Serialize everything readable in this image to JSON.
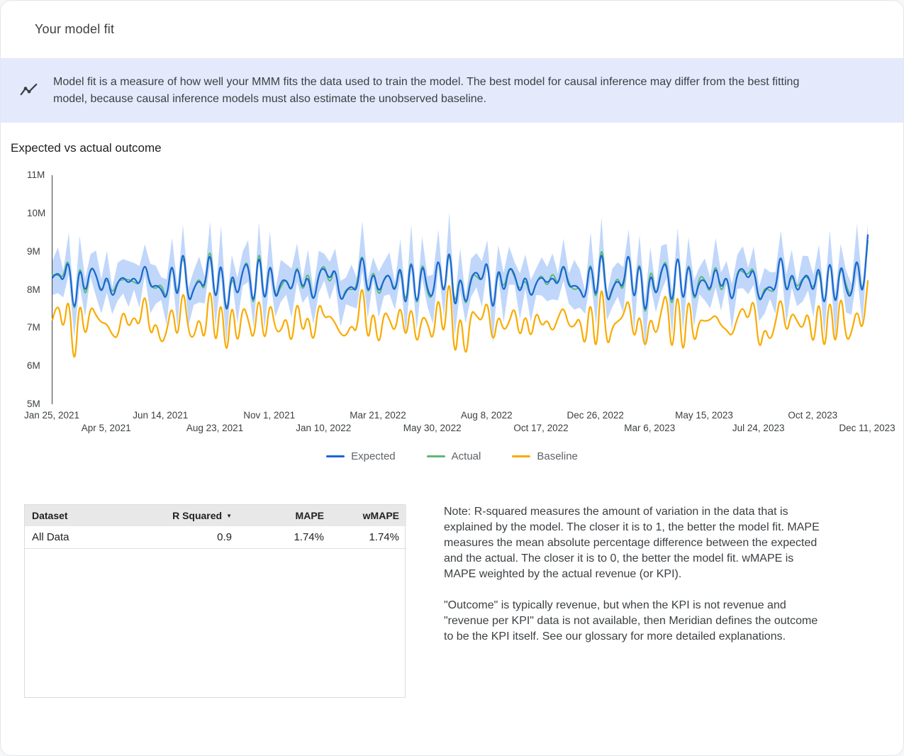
{
  "header": {
    "title": "Your model fit"
  },
  "banner": {
    "icon": "trend-line-icon",
    "text": "Model fit is a measure of how well your MMM fits the data used to train the model. The best model for causal inference may differ from the best fitting model, because causal inference models must also estimate the unobserved baseline."
  },
  "section": {
    "title": "Expected vs actual outcome"
  },
  "chart_data": {
    "type": "line",
    "title": "Expected vs actual outcome",
    "xlabel": "",
    "ylabel": "",
    "ylim": [
      5,
      11
    ],
    "unit": "M",
    "grid": false,
    "legend_position": "bottom",
    "y_tick_labels": [
      "5M",
      "6M",
      "7M",
      "8M",
      "9M",
      "10M",
      "11M"
    ],
    "x_tick_labels": [
      "Jan 25, 2021",
      "Apr 5, 2021",
      "Jun 14, 2021",
      "Aug 23, 2021",
      "Nov 1, 2021",
      "Jan 10, 2022",
      "Mar 21, 2022",
      "May 30, 2022",
      "Aug 8, 2022",
      "Oct 17, 2022",
      "Dec 26, 2022",
      "Mar 6, 2023",
      "May 15, 2023",
      "Jul 24, 2023",
      "Oct 2, 2023",
      "Dec 11, 2023"
    ],
    "x_tick_every_n_points": 10,
    "series": [
      {
        "name": "Expected",
        "color": "#1967d2",
        "values": [
          8.31,
          8.51,
          8.15,
          8.95,
          7.15,
          8.77,
          7.79,
          8.63,
          8.43,
          7.83,
          8.47,
          7.71,
          8.21,
          8.35,
          8.15,
          8.35,
          8.07,
          8.79,
          8.03,
          8.13,
          8.03,
          7.67,
          8.91,
          7.51,
          9.35,
          7.55,
          8.05,
          8.27,
          7.99,
          9.23,
          7.43,
          9.03,
          7.07,
          8.61,
          7.71,
          8.55,
          8.75,
          7.35,
          9.27,
          7.39,
          8.93,
          7.63,
          8.23,
          8.27,
          7.91,
          8.71,
          7.95,
          8.45,
          7.55,
          8.47,
          8.59,
          8.23,
          8.63,
          7.63,
          7.97,
          8.11,
          7.91,
          9.15,
          7.75,
          8.55,
          7.87,
          8.29,
          8.43,
          7.83,
          8.83,
          7.27,
          9.11,
          7.31,
          8.85,
          7.95,
          7.75,
          9.07,
          7.59,
          9.43,
          7.23,
          8.53,
          7.47,
          8.31,
          8.51,
          8.15,
          8.95,
          7.15,
          8.77,
          7.79,
          8.63,
          8.43,
          7.83,
          8.47,
          7.71,
          8.21,
          8.35,
          8.15,
          8.35,
          8.07,
          8.79,
          8.03,
          8.13,
          8.03,
          7.67,
          8.91,
          7.51,
          9.35,
          7.55,
          8.05,
          8.27,
          7.99,
          9.23,
          7.43,
          9.03,
          7.07,
          8.61,
          7.71,
          8.55,
          8.75,
          7.35,
          9.27,
          7.39,
          8.93,
          7.63,
          8.23,
          8.27,
          7.91,
          8.71,
          7.95,
          8.45,
          7.55,
          8.47,
          8.59,
          8.23,
          8.63,
          7.63,
          7.97,
          8.11,
          7.91,
          9.15,
          7.75,
          8.55,
          7.87,
          8.29,
          8.43,
          7.83,
          8.83,
          7.27,
          9.11,
          7.31,
          8.85,
          7.95,
          7.75,
          9.07,
          7.59,
          9.43
        ]
      },
      {
        "name": "Actual",
        "color": "#5bb974",
        "values": [
          8.39,
          8.39,
          8.3,
          8.97,
          7.07,
          8.89,
          7.64,
          8.68,
          8.39,
          7.91,
          8.35,
          7.86,
          8.23,
          8.27,
          8.27,
          8.2,
          8.12,
          8.75,
          8.11,
          8.01,
          8.18,
          7.69,
          8.83,
          7.63,
          9.2,
          7.6,
          8.01,
          8.35,
          7.87,
          9.38,
          7.45,
          8.95,
          7.19,
          8.46,
          7.76,
          8.51,
          8.83,
          7.23,
          9.42,
          7.41,
          8.85,
          7.75,
          8.08,
          8.32,
          7.87,
          8.79,
          7.83,
          8.6,
          7.57,
          8.39,
          8.71,
          8.08,
          8.68,
          7.59,
          8.05,
          7.99,
          8.06,
          9.17,
          7.67,
          8.67,
          7.72,
          8.34,
          8.39,
          7.91,
          8.71,
          7.42,
          9.13,
          7.23,
          8.97,
          7.8,
          7.8,
          9.03,
          7.67,
          9.31,
          7.38,
          8.55,
          7.39,
          8.43,
          8.36,
          8.2,
          8.91,
          7.23,
          8.65,
          7.94,
          8.65,
          8.35,
          7.95,
          8.32,
          7.76,
          8.17,
          8.43,
          8.03,
          8.5,
          8.09,
          8.71,
          8.15,
          7.98,
          8.08,
          7.63,
          8.99,
          7.39,
          9.5,
          7.57,
          7.97,
          8.39,
          7.84,
          9.28,
          7.39,
          9.11,
          6.95,
          8.76,
          7.73,
          8.47,
          8.87,
          7.2,
          9.32,
          7.35,
          9.01,
          7.51,
          8.38,
          8.29,
          7.83,
          8.83,
          7.8,
          8.5,
          7.51,
          8.55,
          8.47,
          8.38,
          8.65,
          7.55,
          8.09,
          7.96,
          7.96,
          9.11,
          7.83,
          8.43,
          8.02,
          8.31,
          8.35,
          7.95,
          8.68,
          7.32,
          9.07,
          7.39,
          8.73,
          8.1,
          7.77,
          8.99,
          7.71,
          9.28
        ]
      },
      {
        "name": "Baseline",
        "color": "#f9ab00",
        "values": [
          7.21,
          7.81,
          6.8,
          8.05,
          5.65,
          7.97,
          6.59,
          7.63,
          7.33,
          7.13,
          7.12,
          6.81,
          6.71,
          7.55,
          6.95,
          7.35,
          6.97,
          8.09,
          6.68,
          7.23,
          6.53,
          6.87,
          7.71,
          6.51,
          8.25,
          6.85,
          6.7,
          7.37,
          6.49,
          8.43,
          6.23,
          8.03,
          5.97,
          7.91,
          6.36,
          7.65,
          7.25,
          6.55,
          8.07,
          6.39,
          7.83,
          6.93,
          6.88,
          7.37,
          6.41,
          7.91,
          6.75,
          7.45,
          6.45,
          7.77,
          7.24,
          7.33,
          7.13,
          6.83,
          6.77,
          7.11,
          6.81,
          8.45,
          6.4,
          7.65,
          6.37,
          7.49,
          7.23,
          6.83,
          7.73,
          6.57,
          7.76,
          6.41,
          7.35,
          7.15,
          6.55,
          8.07,
          6.49,
          8.73,
          5.88,
          7.63,
          5.97,
          7.51,
          7.31,
          7.15,
          7.85,
          6.45,
          7.42,
          6.89,
          7.13,
          7.63,
          6.63,
          7.47,
          6.61,
          7.51,
          7.0,
          7.25,
          6.85,
          7.27,
          7.59,
          7.03,
          7.03,
          7.33,
          6.32,
          8.01,
          6.01,
          8.55,
          6.35,
          7.05,
          7.17,
          7.29,
          7.88,
          6.53,
          7.53,
          6.27,
          7.41,
          6.71,
          7.45,
          8.05,
          6.0,
          8.37,
          5.89,
          8.13,
          6.43,
          7.23,
          7.17,
          7.21,
          7.36,
          7.05,
          6.95,
          6.75,
          7.27,
          7.59,
          7.13,
          7.93,
          6.28,
          7.07,
          6.61,
          7.11,
          7.95,
          6.75,
          7.45,
          7.17,
          6.94,
          7.53,
          6.33,
          8.03,
          6.07,
          8.11,
          6.21,
          8.15,
          6.6,
          6.85,
          7.57,
          6.79,
          8.23
        ]
      }
    ],
    "band": {
      "basis": "Expected",
      "color": "#a8c7fa",
      "half_width": [
        0.45,
        0.6,
        0.35,
        0.55,
        0.4,
        0.65,
        0.5,
        0.3,
        0.6,
        0.45,
        0.55,
        0.35,
        0.5,
        0.45,
        0.6,
        0.35,
        0.55,
        0.4,
        0.65,
        0.5,
        0.3,
        0.6,
        0.45,
        0.55,
        0.35,
        0.5,
        0.45,
        0.6,
        0.35,
        0.55,
        0.4,
        0.65,
        0.5,
        0.3,
        0.6,
        0.45,
        0.55,
        0.35,
        0.5,
        0.45,
        0.6,
        0.35,
        0.55,
        0.4,
        0.65,
        0.5,
        0.3,
        0.6,
        0.45,
        0.55,
        0.35,
        0.5,
        0.45,
        0.6,
        0.35,
        0.55,
        0.4,
        0.65,
        0.5,
        0.3,
        0.6,
        0.45,
        0.55,
        0.35,
        0.5,
        0.45,
        0.6,
        0.35,
        0.55,
        0.4,
        0.65,
        0.5,
        0.3,
        0.6,
        0.45,
        0.55,
        0.35,
        0.5,
        0.45,
        0.6,
        0.35,
        0.55,
        0.4,
        0.65,
        0.5,
        0.3,
        0.6,
        0.45,
        0.55,
        0.35,
        0.5,
        0.45,
        0.6,
        0.35,
        0.55,
        0.4,
        0.65,
        0.5,
        0.3,
        0.6,
        0.45,
        0.55,
        0.35,
        0.5,
        0.45,
        0.6,
        0.35,
        0.55,
        0.4,
        0.65,
        0.5,
        0.3,
        0.6,
        0.45,
        0.55,
        0.35,
        0.5,
        0.45,
        0.6,
        0.35,
        0.55,
        0.4,
        0.65,
        0.5,
        0.3,
        0.6,
        0.45,
        0.55,
        0.35,
        0.5,
        0.45,
        0.6,
        0.35,
        0.55,
        0.4,
        0.65,
        0.5,
        0.3,
        0.6,
        0.45,
        0.55,
        0.35,
        0.5,
        0.45,
        0.6,
        0.35,
        0.55,
        0.4,
        0.65,
        0.5,
        0.3
      ]
    }
  },
  "table": {
    "columns": [
      "Dataset",
      "R Squared",
      "MAPE",
      "wMAPE"
    ],
    "sort_column": "R Squared",
    "sort_indicator": "▼",
    "rows": [
      [
        "All Data",
        "0.9",
        "1.74%",
        "1.74%"
      ]
    ]
  },
  "notes": {
    "paragraph1": "Note: R-squared measures the amount of variation in the data that is explained by the model. The closer it is to 1, the better the model fit. MAPE measures the mean absolute percentage difference between the expected and the actual. The closer it is to 0, the better the model fit. wMAPE is MAPE weighted by the actual revenue (or KPI).",
    "paragraph2": "\"Outcome\" is typically revenue, but when the KPI is not revenue and \"revenue per KPI\" data is not available, then Meridian defines the outcome to be the KPI itself. See our glossary for more detailed explanations."
  }
}
